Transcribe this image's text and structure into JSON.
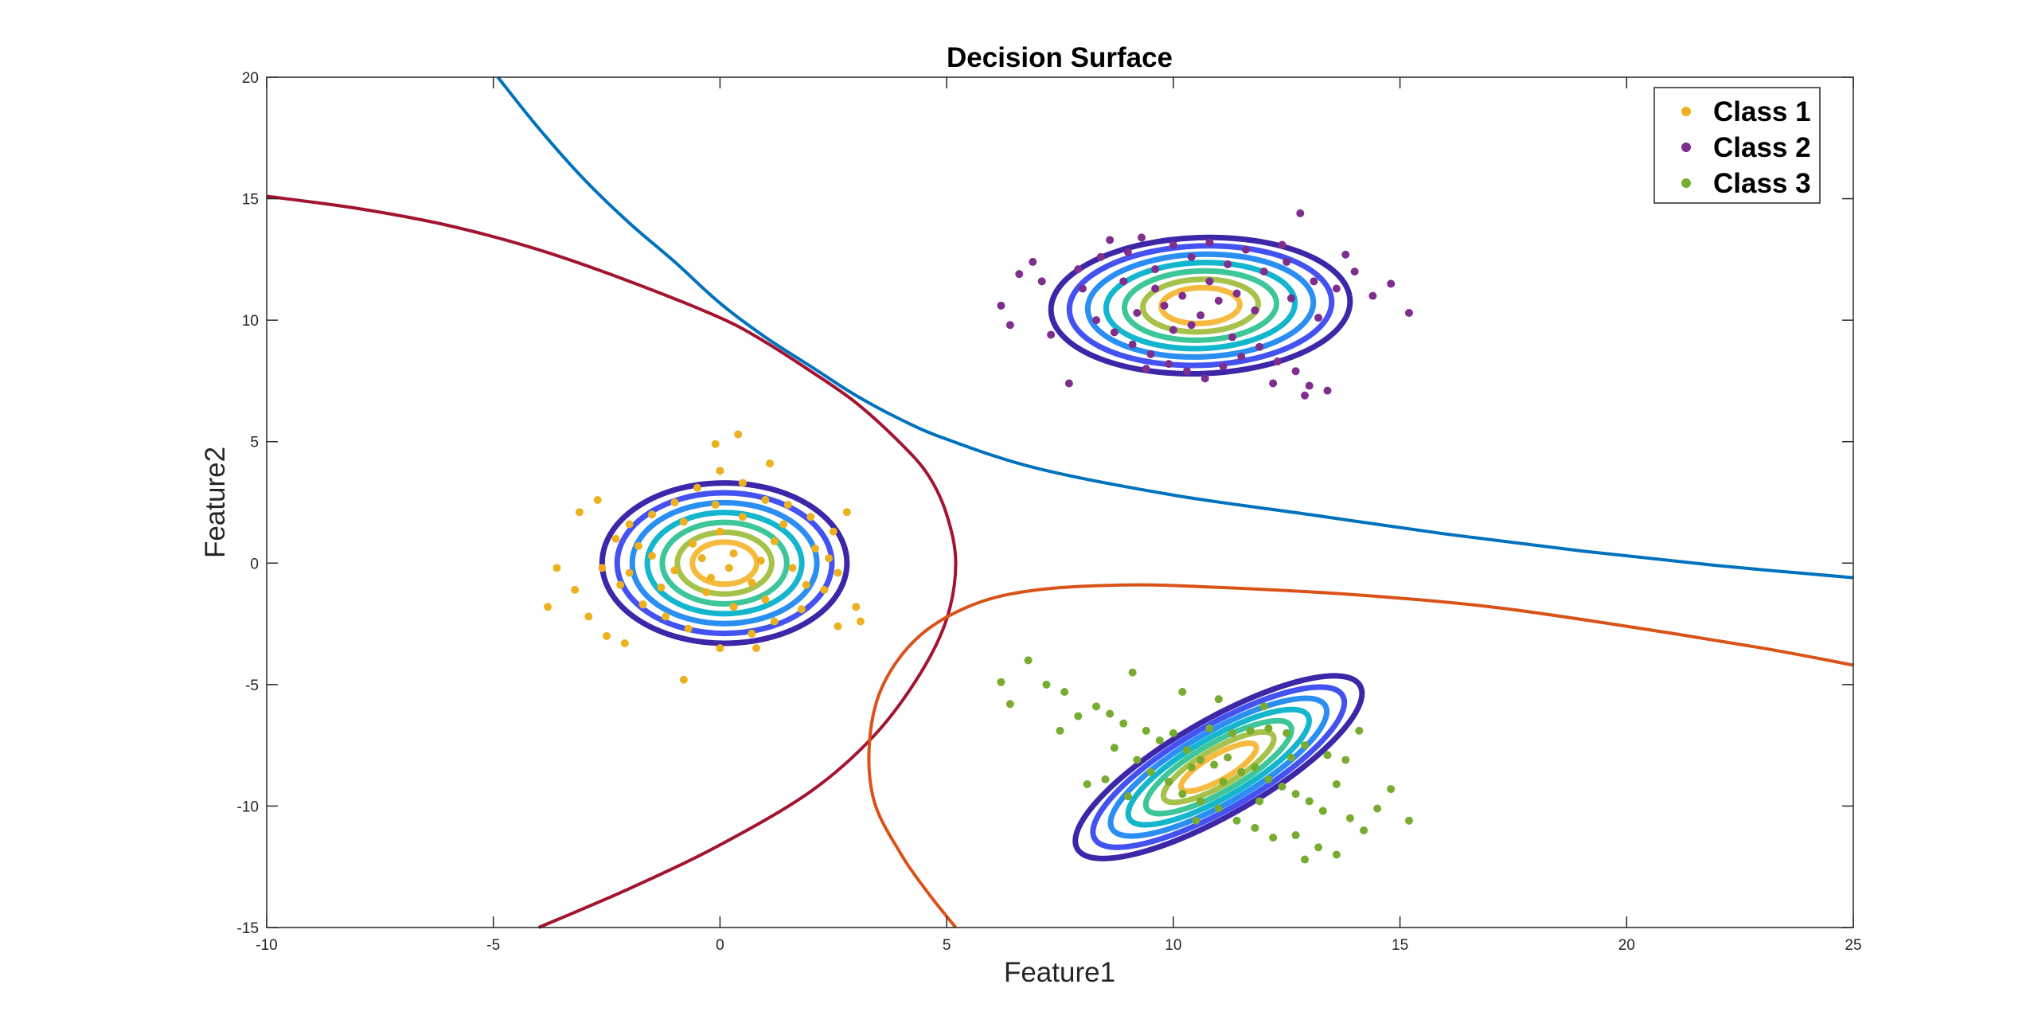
{
  "chart_data": {
    "type": "scatter",
    "title": "Decision Surface",
    "xlabel": "Feature1",
    "ylabel": "Feature2",
    "xlim": [
      -10,
      25
    ],
    "ylim": [
      -15,
      20
    ],
    "xticks": [
      -10,
      -5,
      0,
      5,
      10,
      15,
      20,
      25
    ],
    "yticks": [
      -15,
      -10,
      -5,
      0,
      5,
      10,
      15,
      20
    ],
    "grid": false,
    "box": true,
    "legend": {
      "placement": "top-right",
      "entries": [
        "Class 1",
        "Class 2",
        "Class 3"
      ]
    },
    "series": [
      {
        "name": "Class 1",
        "color": "#EDB120",
        "mean": [
          0.1,
          0.0
        ],
        "points": [
          [
            -2.0,
            1.6
          ],
          [
            -1.5,
            2.0
          ],
          [
            -1.0,
            2.5
          ],
          [
            -0.5,
            3.1
          ],
          [
            0.0,
            3.8
          ],
          [
            0.5,
            3.3
          ],
          [
            1.0,
            2.6
          ],
          [
            1.5,
            2.4
          ],
          [
            2.0,
            1.9
          ],
          [
            2.5,
            1.3
          ],
          [
            -2.3,
            1.0
          ],
          [
            -2.6,
            -0.2
          ],
          [
            -2.2,
            -0.9
          ],
          [
            -1.7,
            -1.7
          ],
          [
            -1.2,
            -2.2
          ],
          [
            -0.7,
            -2.7
          ],
          [
            0.0,
            -3.5
          ],
          [
            0.7,
            -2.9
          ],
          [
            1.2,
            -2.4
          ],
          [
            1.8,
            -1.9
          ],
          [
            2.3,
            -1.1
          ],
          [
            2.6,
            -0.4
          ],
          [
            2.1,
            0.6
          ],
          [
            -1.5,
            0.3
          ],
          [
            -1.0,
            -0.3
          ],
          [
            -0.6,
            0.8
          ],
          [
            -0.2,
            -0.6
          ],
          [
            0.3,
            0.4
          ],
          [
            0.7,
            -0.8
          ],
          [
            1.2,
            0.9
          ],
          [
            1.6,
            -0.2
          ],
          [
            0.0,
            1.3
          ],
          [
            -0.3,
            -1.2
          ],
          [
            0.5,
            1.9
          ],
          [
            1.0,
            -1.5
          ],
          [
            -1.8,
            0.7
          ],
          [
            1.9,
            -0.9
          ],
          [
            -0.8,
            1.7
          ],
          [
            0.9,
            0.1
          ],
          [
            -0.4,
            0.2
          ],
          [
            0.2,
            -0.2
          ],
          [
            -1.3,
            -1.0
          ],
          [
            1.4,
            1.6
          ],
          [
            -2.0,
            -0.4
          ],
          [
            2.4,
            0.2
          ],
          [
            -0.1,
            2.4
          ],
          [
            0.3,
            -1.8
          ],
          [
            -3.6,
            -0.2
          ],
          [
            -3.2,
            -1.1
          ],
          [
            -2.9,
            -2.2
          ],
          [
            -2.5,
            -3.0
          ],
          [
            -3.1,
            2.1
          ],
          [
            -2.7,
            2.6
          ],
          [
            3.0,
            -1.8
          ],
          [
            3.1,
            -2.4
          ],
          [
            2.8,
            2.1
          ],
          [
            1.1,
            4.1
          ],
          [
            -0.1,
            4.9
          ],
          [
            0.4,
            5.3
          ],
          [
            -0.8,
            -4.8
          ],
          [
            2.6,
            -2.6
          ],
          [
            -3.8,
            -1.8
          ],
          [
            0.8,
            -3.5
          ],
          [
            -2.1,
            -3.3
          ]
        ]
      },
      {
        "name": "Class 2",
        "color": "#7E2F8E",
        "mean": [
          10.5,
          10.5
        ],
        "points": [
          [
            6.2,
            10.6
          ],
          [
            6.6,
            11.9
          ],
          [
            6.9,
            12.4
          ],
          [
            7.1,
            11.6
          ],
          [
            6.4,
            9.8
          ],
          [
            7.3,
            9.4
          ],
          [
            7.7,
            7.4
          ],
          [
            8.0,
            11.3
          ],
          [
            8.4,
            12.6
          ],
          [
            8.6,
            13.3
          ],
          [
            9.0,
            12.8
          ],
          [
            9.3,
            13.4
          ],
          [
            9.6,
            12.1
          ],
          [
            10.0,
            13.1
          ],
          [
            10.4,
            12.6
          ],
          [
            10.8,
            13.2
          ],
          [
            11.2,
            12.3
          ],
          [
            11.6,
            12.9
          ],
          [
            12.0,
            12.0
          ],
          [
            12.4,
            13.1
          ],
          [
            12.8,
            14.4
          ],
          [
            12.5,
            12.4
          ],
          [
            13.1,
            11.6
          ],
          [
            13.6,
            11.3
          ],
          [
            14.0,
            12.0
          ],
          [
            14.4,
            11.0
          ],
          [
            14.8,
            11.5
          ],
          [
            15.2,
            10.3
          ],
          [
            8.3,
            10.0
          ],
          [
            8.7,
            9.5
          ],
          [
            9.1,
            9.0
          ],
          [
            9.5,
            8.6
          ],
          [
            9.9,
            8.2
          ],
          [
            10.3,
            7.9
          ],
          [
            10.7,
            7.6
          ],
          [
            11.1,
            8.1
          ],
          [
            11.5,
            8.5
          ],
          [
            11.9,
            8.9
          ],
          [
            12.3,
            8.3
          ],
          [
            12.7,
            7.9
          ],
          [
            13.0,
            7.3
          ],
          [
            13.4,
            7.1
          ],
          [
            12.9,
            6.9
          ],
          [
            12.2,
            7.4
          ],
          [
            9.8,
            10.6
          ],
          [
            10.2,
            11.0
          ],
          [
            10.6,
            10.2
          ],
          [
            11.0,
            10.8
          ],
          [
            10.4,
            9.8
          ],
          [
            9.6,
            11.3
          ],
          [
            11.4,
            11.1
          ],
          [
            10.0,
            9.6
          ],
          [
            10.8,
            11.6
          ],
          [
            9.2,
            10.3
          ],
          [
            11.8,
            10.4
          ],
          [
            12.6,
            10.9
          ],
          [
            8.9,
            11.6
          ],
          [
            13.2,
            10.1
          ],
          [
            7.9,
            12.1
          ],
          [
            13.8,
            12.7
          ],
          [
            11.3,
            9.3
          ],
          [
            9.4,
            8.0
          ]
        ]
      },
      {
        "name": "Class 3",
        "color": "#77AC30",
        "mean": [
          11.0,
          -8.2
        ],
        "points": [
          [
            6.2,
            -4.9
          ],
          [
            6.4,
            -5.8
          ],
          [
            6.8,
            -4.0
          ],
          [
            7.2,
            -5.0
          ],
          [
            7.6,
            -5.3
          ],
          [
            7.5,
            -6.9
          ],
          [
            7.9,
            -6.3
          ],
          [
            8.1,
            -9.1
          ],
          [
            8.3,
            -5.9
          ],
          [
            8.6,
            -6.2
          ],
          [
            8.9,
            -6.6
          ],
          [
            9.1,
            -4.5
          ],
          [
            9.4,
            -6.9
          ],
          [
            9.7,
            -7.3
          ],
          [
            10.0,
            -7.0
          ],
          [
            10.3,
            -7.7
          ],
          [
            10.6,
            -8.1
          ],
          [
            10.9,
            -8.3
          ],
          [
            11.2,
            -8.0
          ],
          [
            11.5,
            -8.6
          ],
          [
            11.8,
            -8.4
          ],
          [
            12.1,
            -8.9
          ],
          [
            12.4,
            -9.2
          ],
          [
            12.7,
            -9.5
          ],
          [
            13.0,
            -9.8
          ],
          [
            13.3,
            -10.2
          ],
          [
            13.6,
            -9.1
          ],
          [
            13.9,
            -10.5
          ],
          [
            14.2,
            -11.0
          ],
          [
            14.5,
            -10.1
          ],
          [
            14.8,
            -9.3
          ],
          [
            15.2,
            -10.6
          ],
          [
            13.2,
            -11.7
          ],
          [
            12.7,
            -11.2
          ],
          [
            12.9,
            -12.2
          ],
          [
            13.6,
            -12.0
          ],
          [
            9.5,
            -8.6
          ],
          [
            9.9,
            -9.0
          ],
          [
            10.2,
            -9.5
          ],
          [
            10.6,
            -9.8
          ],
          [
            11.0,
            -10.1
          ],
          [
            11.4,
            -10.6
          ],
          [
            11.8,
            -10.9
          ],
          [
            12.2,
            -11.3
          ],
          [
            8.7,
            -7.6
          ],
          [
            9.2,
            -8.1
          ],
          [
            10.8,
            -6.8
          ],
          [
            11.3,
            -7.0
          ],
          [
            11.7,
            -6.9
          ],
          [
            12.1,
            -6.8
          ],
          [
            12.5,
            -7.0
          ],
          [
            12.9,
            -7.5
          ],
          [
            13.4,
            -7.9
          ],
          [
            13.8,
            -8.1
          ],
          [
            14.1,
            -6.9
          ],
          [
            12.0,
            -5.9
          ],
          [
            10.2,
            -5.3
          ],
          [
            11.0,
            -5.6
          ],
          [
            8.5,
            -8.9
          ],
          [
            9.0,
            -9.6
          ],
          [
            10.5,
            -10.6
          ],
          [
            11.9,
            -9.8
          ],
          [
            10.4,
            -8.4
          ],
          [
            11.1,
            -9.0
          ],
          [
            12.6,
            -8.0
          ]
        ]
      }
    ],
    "contours": [
      {
        "name": "Class 1",
        "center": [
          0.1,
          0.0
        ],
        "radii": [
          2.7,
          3.3
        ],
        "angle": 0,
        "levels": 7
      },
      {
        "name": "Class 2",
        "center": [
          10.6,
          10.6
        ],
        "radii": [
          3.3,
          2.8
        ],
        "angle": -2,
        "levels": 7
      },
      {
        "name": "Class 3",
        "center": [
          11.0,
          -8.4
        ],
        "radii": [
          3.6,
          1.95
        ],
        "angle": -30,
        "levels": 7
      }
    ],
    "boundaries": [
      {
        "color": "#0072BD",
        "points": [
          [
            -4.9,
            20
          ],
          [
            -4.0,
            17.9
          ],
          [
            -3.0,
            15.8
          ],
          [
            -2.0,
            14.0
          ],
          [
            -1.0,
            12.4
          ],
          [
            0.0,
            10.7
          ],
          [
            1.0,
            9.3
          ],
          [
            2.0,
            8.1
          ],
          [
            3.0,
            6.9
          ],
          [
            4.0,
            5.9
          ],
          [
            5.0,
            5.1
          ],
          [
            7.0,
            3.9
          ],
          [
            10.0,
            2.8
          ],
          [
            13.0,
            2.0
          ],
          [
            16.0,
            1.2
          ],
          [
            19.0,
            0.5
          ],
          [
            22.0,
            -0.1
          ],
          [
            25.0,
            -0.6
          ]
        ]
      },
      {
        "color": "#A2142F",
        "points": [
          [
            -10,
            15.1
          ],
          [
            -8.0,
            14.6
          ],
          [
            -6.0,
            13.9
          ],
          [
            -4.0,
            12.9
          ],
          [
            -2.0,
            11.6
          ],
          [
            0.0,
            10.1
          ],
          [
            1.0,
            9.1
          ],
          [
            2.0,
            7.9
          ],
          [
            3.0,
            6.6
          ],
          [
            4.0,
            4.9
          ],
          [
            4.6,
            3.6
          ],
          [
            5.0,
            2.0
          ],
          [
            5.2,
            0.0
          ],
          [
            5.0,
            -2.3
          ],
          [
            4.4,
            -4.6
          ],
          [
            3.4,
            -7.1
          ],
          [
            2.0,
            -9.4
          ],
          [
            0.0,
            -11.6
          ],
          [
            -2.0,
            -13.4
          ],
          [
            -4.0,
            -15.0
          ]
        ]
      },
      {
        "color": "#D95319",
        "points": [
          [
            5.2,
            -15.0
          ],
          [
            4.6,
            -13.6
          ],
          [
            4.0,
            -12.0
          ],
          [
            3.4,
            -9.8
          ],
          [
            3.3,
            -7.3
          ],
          [
            3.6,
            -5.0
          ],
          [
            4.4,
            -3.0
          ],
          [
            5.6,
            -1.7
          ],
          [
            7.0,
            -1.1
          ],
          [
            9.0,
            -0.9
          ],
          [
            11.0,
            -1.0
          ],
          [
            14.0,
            -1.3
          ],
          [
            17.0,
            -1.8
          ],
          [
            20.0,
            -2.6
          ],
          [
            23.0,
            -3.5
          ],
          [
            25.0,
            -4.2
          ]
        ]
      }
    ]
  }
}
